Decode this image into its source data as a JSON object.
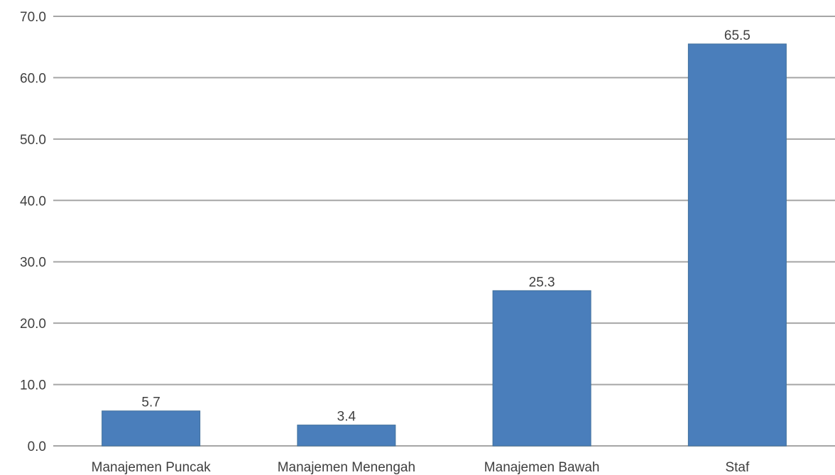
{
  "chart_data": {
    "type": "bar",
    "categories": [
      "Manajemen Puncak",
      "Manajemen Menengah",
      "Manajemen Bawah",
      "Staf"
    ],
    "values": [
      5.7,
      3.4,
      25.3,
      65.5
    ],
    "value_labels": [
      "5.7",
      "3.4",
      "25.3",
      "65.5"
    ],
    "y_ticks": [
      "0.0",
      "10.0",
      "20.0",
      "30.0",
      "40.0",
      "50.0",
      "60.0",
      "70.0"
    ],
    "ylim": [
      0,
      70
    ],
    "grid": true,
    "legend": "none",
    "bar_color": "#4a7ebb"
  }
}
